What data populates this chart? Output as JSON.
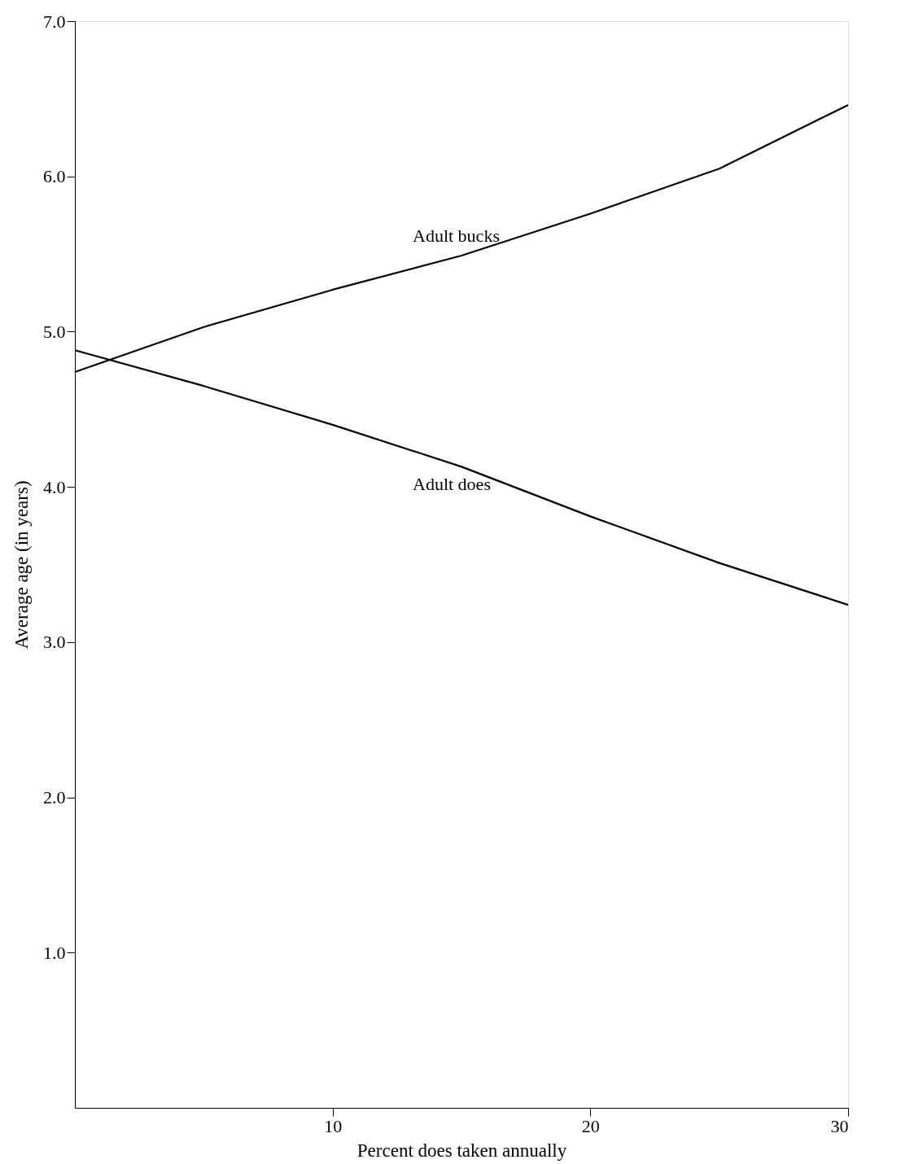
{
  "chart_data": {
    "type": "line",
    "xlabel": "Percent does taken annually",
    "ylabel": "Average age (in years)",
    "x": [
      0,
      5,
      10,
      15,
      20,
      25,
      30
    ],
    "series": [
      {
        "name": "Adult bucks",
        "color": "#000000",
        "values": [
          4.74,
          5.03,
          5.27,
          5.49,
          5.76,
          6.05,
          6.46
        ]
      },
      {
        "name": "Adult does",
        "color": "#000000",
        "values": [
          4.88,
          4.65,
          4.4,
          4.13,
          3.81,
          3.51,
          3.24
        ]
      }
    ],
    "xlim": [
      0,
      30
    ],
    "xticks": [
      10,
      20,
      30
    ],
    "ylim": [
      0,
      7
    ],
    "yticks": [
      {
        "value": 1,
        "label": "1.0"
      },
      {
        "value": 2,
        "label": "2.0"
      },
      {
        "value": 3,
        "label": "3.0"
      },
      {
        "value": 4,
        "label": "4.0"
      },
      {
        "value": 5,
        "label": "5.0"
      },
      {
        "value": 6,
        "label": "6.0"
      },
      {
        "value": 7,
        "label": "7.0"
      }
    ],
    "grid": false,
    "marker": "none",
    "line_style": "solid"
  }
}
